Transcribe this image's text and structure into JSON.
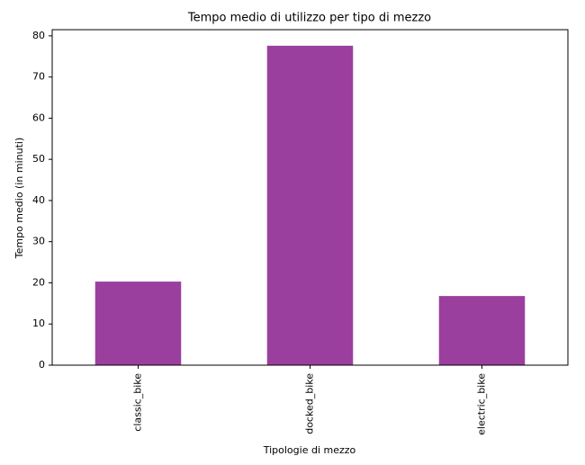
{
  "chart_data": {
    "type": "bar",
    "title": "Tempo medio di utilizzo per tipo di mezzo",
    "x_label": "Tipologie di mezzo",
    "y_label": "Tempo medio (in minuti)",
    "categories": [
      "classic_bike",
      "docked_bike",
      "electric_bike"
    ],
    "values": [
      20.3,
      77.6,
      16.8
    ],
    "color": "#9b3f9f",
    "ylim": [
      0,
      81.5
    ],
    "yticks": [
      0,
      10,
      20,
      30,
      40,
      50,
      60,
      70,
      80
    ],
    "grid": false
  }
}
